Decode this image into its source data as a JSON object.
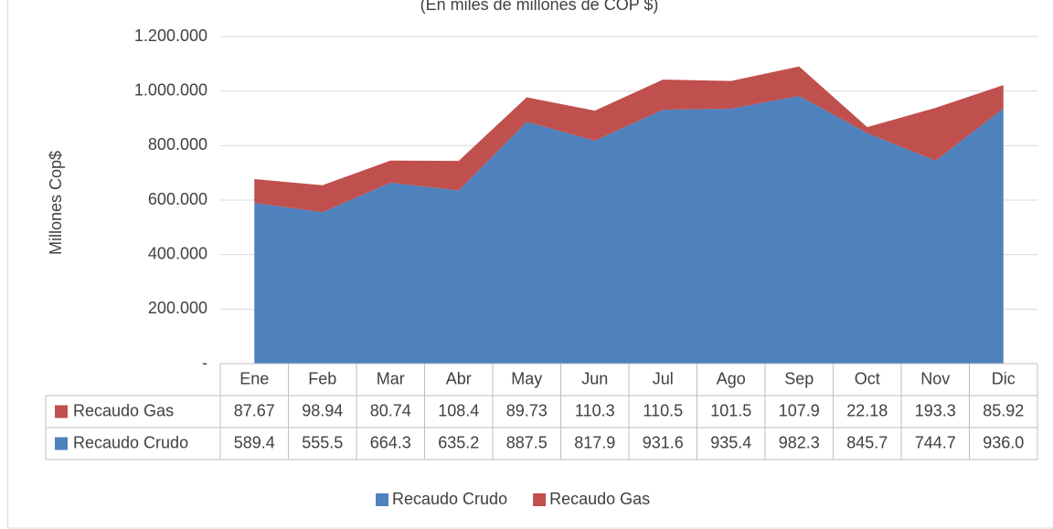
{
  "chart_data": {
    "type": "stacked_area",
    "subtitle": "(En miles de millones de COP $)",
    "y_label": "Millones  Cop$",
    "categories": [
      "Ene",
      "Feb",
      "Mar",
      "Abr",
      "May",
      "Jun",
      "Jul",
      "Ago",
      "Sep",
      "Oct",
      "Nov",
      "Dic"
    ],
    "series": [
      {
        "name": "Recaudo Crudo",
        "color": "#4f81bd",
        "values": [
          589400,
          555500,
          664300,
          635200,
          887500,
          817900,
          931600,
          935400,
          982300,
          845700,
          744700,
          936000
        ],
        "value_labels": [
          "589.4",
          "555.5",
          "664.3",
          "635.2",
          "887.5",
          "817.9",
          "931.6",
          "935.4",
          "982.3",
          "845.7",
          "744.7",
          "936.0"
        ]
      },
      {
        "name": "Recaudo Gas",
        "color": "#c0504d",
        "values": [
          87670,
          98940,
          80740,
          108400,
          89730,
          110300,
          110500,
          101500,
          107900,
          22180,
          193300,
          85920
        ],
        "value_labels": [
          "87.67",
          "98.94",
          "80.74",
          "108.4",
          "89.73",
          "110.3",
          "110.5",
          "101.5",
          "107.9",
          "22.18",
          "193.3",
          "85.92"
        ]
      }
    ],
    "ylim": [
      0,
      1200000
    ],
    "yticks": [
      {
        "value": 0,
        "label": "-"
      },
      {
        "value": 200000,
        "label": "200.000"
      },
      {
        "value": 400000,
        "label": "400.000"
      },
      {
        "value": 600000,
        "label": "600.000"
      },
      {
        "value": 800000,
        "label": "800.000"
      },
      {
        "value": 1000000,
        "label": "1.000.000"
      },
      {
        "value": 1200000,
        "label": "1.200.000"
      }
    ],
    "grid": true,
    "legend": "bottom"
  }
}
